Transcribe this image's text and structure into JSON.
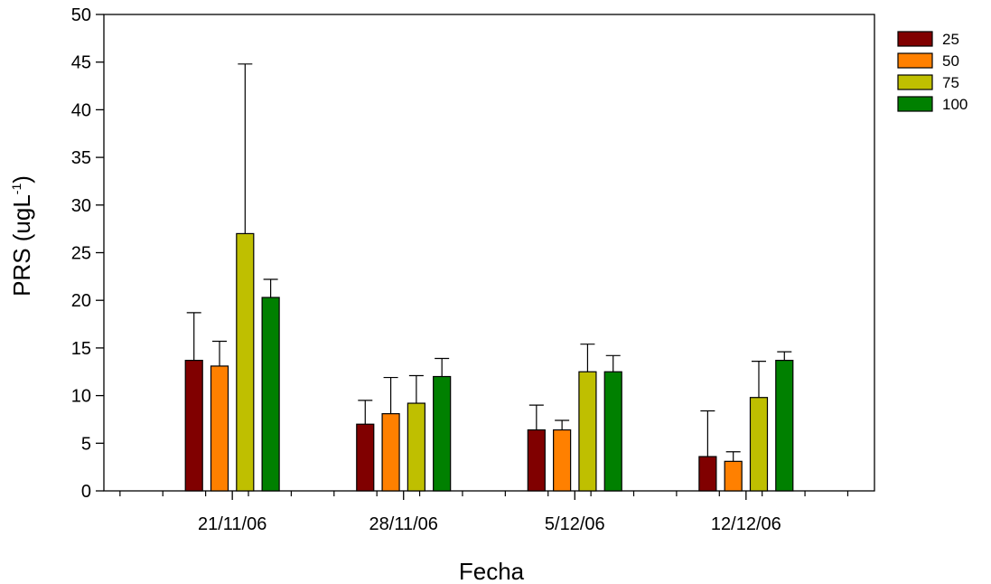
{
  "chart_data": {
    "type": "bar",
    "categories": [
      "21/11/06",
      "28/11/06",
      "5/12/06",
      "12/12/06"
    ],
    "series": [
      {
        "name": "25",
        "color": "#800000",
        "values": [
          13.7,
          7.0,
          6.4,
          3.6
        ],
        "errors": [
          5.0,
          2.5,
          2.6,
          4.8
        ]
      },
      {
        "name": "50",
        "color": "#ff8000",
        "values": [
          13.1,
          8.1,
          6.4,
          3.1
        ],
        "errors": [
          2.6,
          3.8,
          1.0,
          1.0
        ]
      },
      {
        "name": "75",
        "color": "#bfbf00",
        "values": [
          27.0,
          9.2,
          12.5,
          9.8
        ],
        "errors": [
          17.8,
          2.9,
          2.9,
          3.8
        ]
      },
      {
        "name": "100",
        "color": "#008000",
        "values": [
          20.3,
          12.0,
          12.5,
          13.7
        ],
        "errors": [
          1.9,
          1.9,
          1.7,
          0.9
        ]
      }
    ],
    "xlabel": "Fecha",
    "ylabel": {
      "main": "PRS (ugL",
      "sup": "-1",
      "end": ")"
    },
    "ylim": [
      0,
      50
    ],
    "yticks": [
      "0",
      "5",
      "10",
      "15",
      "20",
      "25",
      "30",
      "35",
      "40",
      "45",
      "50"
    ],
    "grid": false,
    "legend_position": "top-right"
  }
}
